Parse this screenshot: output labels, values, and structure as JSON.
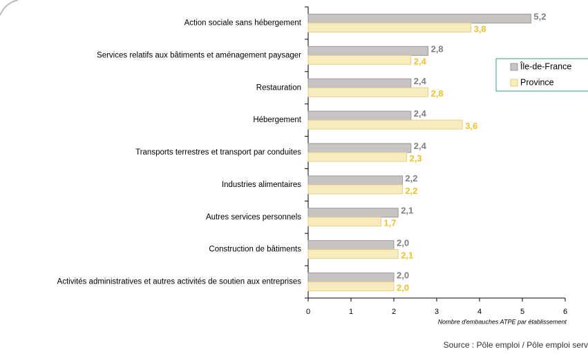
{
  "chart_data": {
    "type": "bar",
    "orientation": "horizontal",
    "categories": [
      "Action sociale sans hébergement",
      "Services relatifs aux bâtiments et aménagement paysager",
      "Restauration",
      "Hébergement",
      "Transports terrestres et transport par conduites",
      "Industries alimentaires",
      "Autres services personnels",
      "Construction de bâtiments",
      "Activités administratives et autres activités de soutien aux entreprises"
    ],
    "series": [
      {
        "name": "Île-de-France",
        "color": "#c9c4c4",
        "values": [
          5.2,
          2.8,
          2.4,
          2.4,
          2.4,
          2.2,
          2.1,
          2.0,
          2.0
        ],
        "value_labels": [
          "5,2",
          "2,8",
          "2,4",
          "2,4",
          "2,4",
          "2,2",
          "2,1",
          "2,0",
          "2,0"
        ]
      },
      {
        "name": "Province",
        "color": "#f8ebbd",
        "values": [
          3.8,
          2.4,
          2.8,
          3.6,
          2.3,
          2.2,
          1.7,
          2.1,
          2.0
        ],
        "value_labels": [
          "3,8",
          "2,4",
          "2,8",
          "3,6",
          "2,3",
          "2,2",
          "1,7",
          "2,1",
          "2,0"
        ]
      }
    ],
    "xlabel": "Nombre d'embauches ATPE par établissement",
    "xlim": [
      0,
      6
    ],
    "xticks": [
      0,
      1,
      2,
      3,
      4,
      5,
      6
    ],
    "source": "Source : Pôle emploi / Pôle emploi serv",
    "legend": "right"
  }
}
